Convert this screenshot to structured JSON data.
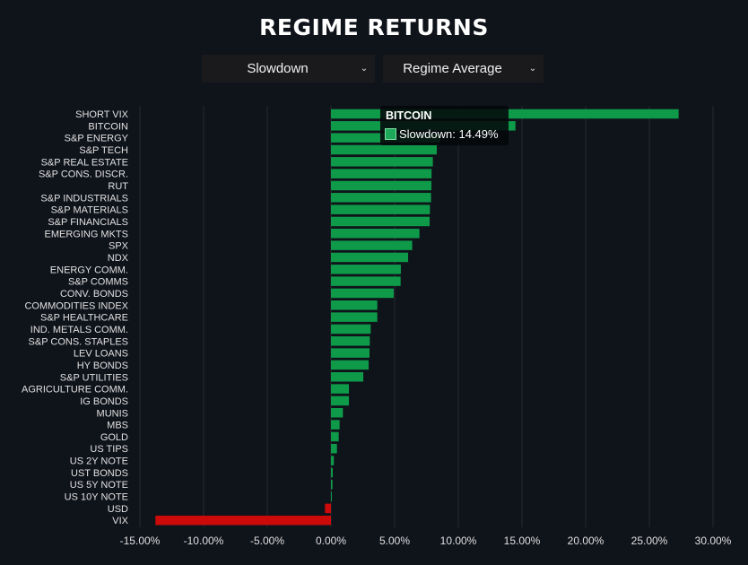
{
  "title": "REGIME RETURNS",
  "controls": {
    "regime_select": "Slowdown",
    "metric_select": "Regime Average"
  },
  "tooltip": {
    "asset": "BITCOIN",
    "series": "Slowdown",
    "value": "14.49%",
    "text": "Slowdown: 14.49%"
  },
  "colors": {
    "positive": "#0f9a4a",
    "negative": "#cc0a0a",
    "grid": "#262b33",
    "background": "#0f131a"
  },
  "chart_data": {
    "type": "bar",
    "orientation": "horizontal",
    "title": "REGIME RETURNS",
    "series_name": "Slowdown",
    "xlabel": "",
    "ylabel": "",
    "xlim": [
      -15,
      30
    ],
    "x_ticks": [
      -15,
      -10,
      -5,
      0,
      5,
      10,
      15,
      20,
      25,
      30
    ],
    "x_tick_labels": [
      "-15.00%",
      "-10.00%",
      "-5.00%",
      "0.00%",
      "5.00%",
      "10.00%",
      "15.00%",
      "20.00%",
      "25.00%",
      "30.00%"
    ],
    "grid": true,
    "categories": [
      "SHORT VIX",
      "BITCOIN",
      "S&P ENERGY",
      "S&P TECH",
      "S&P REAL ESTATE",
      "S&P CONS. DISCR.",
      "RUT",
      "S&P INDUSTRIALS",
      "S&P MATERIALS",
      "S&P FINANCIALS",
      "EMERGING MKTS",
      "SPX",
      "NDX",
      "ENERGY COMM.",
      "S&P COMMS",
      "CONV. BONDS",
      "COMMODITIES INDEX",
      "S&P HEALTHCARE",
      "IND. METALS COMM.",
      "S&P CONS. STAPLES",
      "LEV LOANS",
      "HY BONDS",
      "S&P UTILITIES",
      "AGRICULTURE COMM.",
      "IG BONDS",
      "MUNIS",
      "MBS",
      "GOLD",
      "US TIPS",
      "US 2Y NOTE",
      "UST BONDS",
      "US 5Y NOTE",
      "US 10Y NOTE",
      "USD",
      "VIX"
    ],
    "values": [
      27.3,
      14.49,
      8.6,
      8.31,
      8.0,
      7.9,
      7.89,
      7.86,
      7.77,
      7.75,
      6.95,
      6.38,
      6.06,
      5.49,
      5.47,
      4.93,
      3.64,
      3.64,
      3.12,
      3.05,
      3.03,
      2.96,
      2.54,
      1.41,
      1.41,
      0.94,
      0.68,
      0.61,
      0.47,
      0.23,
      0.14,
      0.12,
      0.07,
      -0.47,
      -13.78
    ]
  }
}
